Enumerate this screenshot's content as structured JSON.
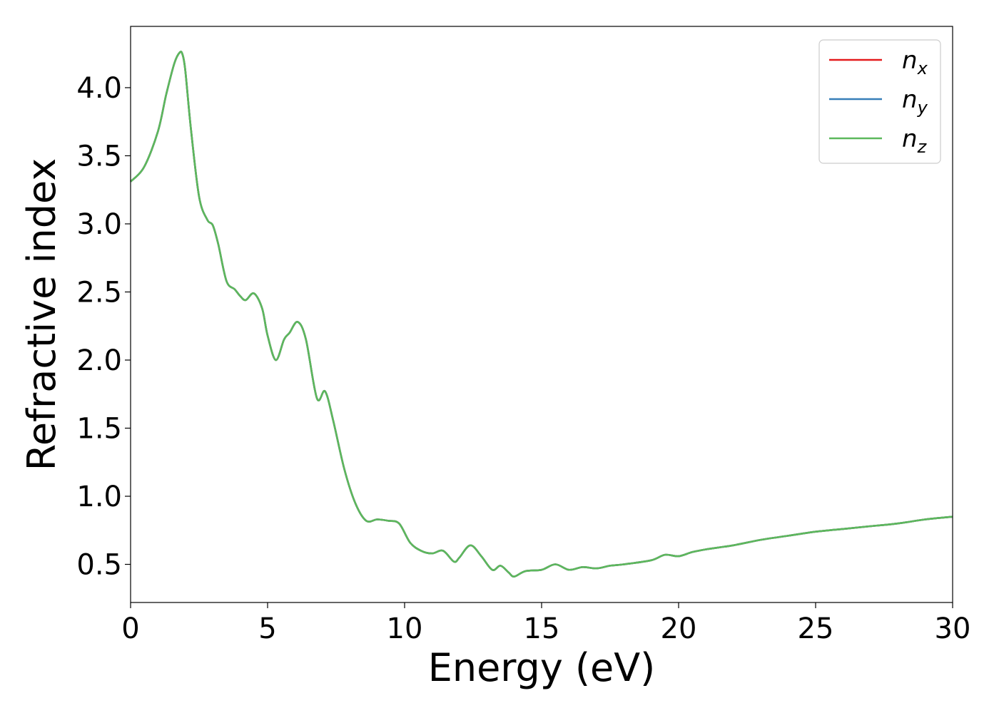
{
  "chart_data": {
    "type": "line",
    "title": "",
    "xlabel": "Energy (eV)",
    "ylabel": "Refractive index",
    "xlim": [
      0,
      30
    ],
    "ylim": [
      0.22,
      4.45
    ],
    "xticks": [
      "0",
      "5",
      "10",
      "15",
      "20",
      "25",
      "30"
    ],
    "yticks": [
      "0.5",
      "1.0",
      "1.5",
      "2.0",
      "2.5",
      "3.0",
      "3.5",
      "4.0"
    ],
    "grid": false,
    "legend": {
      "placement": "top-right"
    },
    "x": [
      0,
      0.5,
      1.0,
      1.3,
      1.6,
      1.8,
      1.9,
      2.0,
      2.2,
      2.5,
      2.8,
      3.0,
      3.2,
      3.5,
      3.8,
      4.0,
      4.2,
      4.5,
      4.8,
      5.0,
      5.3,
      5.6,
      5.8,
      6.1,
      6.4,
      6.8,
      7.1,
      7.4,
      7.8,
      8.2,
      8.6,
      9.0,
      9.4,
      9.8,
      10.2,
      10.6,
      11.0,
      11.4,
      11.8,
      12.0,
      12.4,
      12.8,
      13.2,
      13.5,
      13.8,
      14.0,
      14.4,
      15.0,
      15.5,
      16.0,
      16.5,
      17.0,
      17.5,
      18.0,
      19.0,
      19.5,
      20.0,
      20.5,
      21.0,
      22.0,
      23.0,
      24.0,
      25.0,
      26.0,
      27.0,
      28.0,
      29.0,
      30.0
    ],
    "series": [
      {
        "name": "n_x",
        "label_base": "n",
        "label_sub": "x",
        "color": "#e41a1c",
        "values": [
          3.31,
          3.42,
          3.68,
          3.95,
          4.18,
          4.26,
          4.24,
          4.12,
          3.7,
          3.2,
          3.03,
          2.99,
          2.85,
          2.58,
          2.52,
          2.47,
          2.44,
          2.49,
          2.38,
          2.18,
          2.0,
          2.15,
          2.2,
          2.28,
          2.15,
          1.72,
          1.77,
          1.55,
          1.2,
          0.95,
          0.82,
          0.83,
          0.82,
          0.8,
          0.66,
          0.6,
          0.58,
          0.6,
          0.52,
          0.55,
          0.64,
          0.56,
          0.46,
          0.49,
          0.44,
          0.41,
          0.45,
          0.46,
          0.5,
          0.46,
          0.48,
          0.47,
          0.49,
          0.5,
          0.53,
          0.57,
          0.56,
          0.59,
          0.61,
          0.64,
          0.68,
          0.71,
          0.74,
          0.76,
          0.78,
          0.8,
          0.83,
          0.85
        ]
      },
      {
        "name": "n_y",
        "label_base": "n",
        "label_sub": "y",
        "color": "#377eb8",
        "values": [
          3.31,
          3.42,
          3.68,
          3.95,
          4.18,
          4.26,
          4.24,
          4.12,
          3.7,
          3.2,
          3.03,
          2.99,
          2.85,
          2.58,
          2.52,
          2.47,
          2.44,
          2.49,
          2.38,
          2.18,
          2.0,
          2.15,
          2.2,
          2.28,
          2.15,
          1.72,
          1.77,
          1.55,
          1.2,
          0.95,
          0.82,
          0.83,
          0.82,
          0.8,
          0.66,
          0.6,
          0.58,
          0.6,
          0.52,
          0.55,
          0.64,
          0.56,
          0.46,
          0.49,
          0.44,
          0.41,
          0.45,
          0.46,
          0.5,
          0.46,
          0.48,
          0.47,
          0.49,
          0.5,
          0.53,
          0.57,
          0.56,
          0.59,
          0.61,
          0.64,
          0.68,
          0.71,
          0.74,
          0.76,
          0.78,
          0.8,
          0.83,
          0.85
        ]
      },
      {
        "name": "n_z",
        "label_base": "n",
        "label_sub": "z",
        "color": "#5cb85c",
        "values": [
          3.31,
          3.42,
          3.68,
          3.95,
          4.18,
          4.26,
          4.24,
          4.12,
          3.7,
          3.2,
          3.03,
          2.99,
          2.85,
          2.58,
          2.52,
          2.47,
          2.44,
          2.49,
          2.38,
          2.18,
          2.0,
          2.15,
          2.2,
          2.28,
          2.15,
          1.72,
          1.77,
          1.55,
          1.2,
          0.95,
          0.82,
          0.83,
          0.82,
          0.8,
          0.66,
          0.6,
          0.58,
          0.6,
          0.52,
          0.55,
          0.64,
          0.56,
          0.46,
          0.49,
          0.44,
          0.41,
          0.45,
          0.46,
          0.5,
          0.46,
          0.48,
          0.47,
          0.49,
          0.5,
          0.53,
          0.57,
          0.56,
          0.59,
          0.61,
          0.64,
          0.68,
          0.71,
          0.74,
          0.76,
          0.78,
          0.8,
          0.83,
          0.85
        ]
      }
    ]
  }
}
